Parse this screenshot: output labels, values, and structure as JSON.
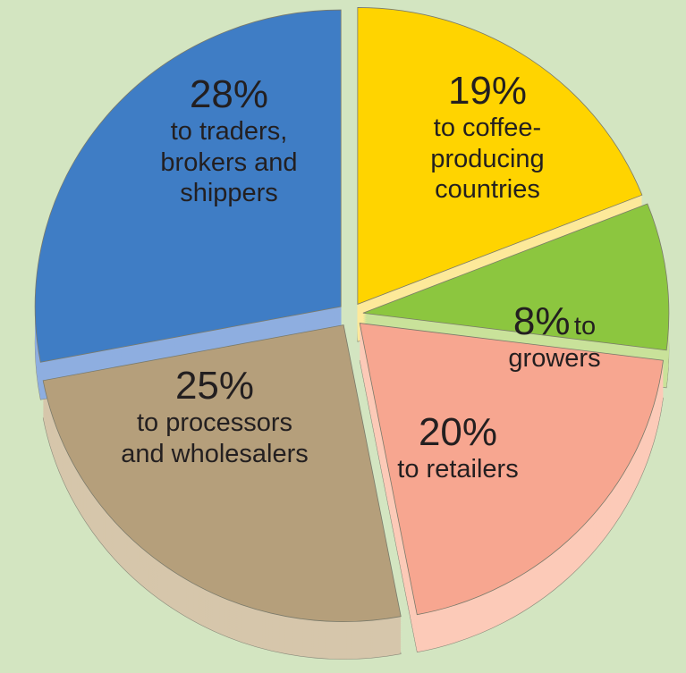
{
  "chart_data": {
    "type": "pie",
    "categories": [
      "to coffee-\nproducing\ncountries",
      "to growers",
      "to retailers",
      "to processors\nand wholesalers",
      "to traders,\nbrokers and\nshippers"
    ],
    "values": [
      19,
      8,
      20,
      25,
      28
    ],
    "value_labels": [
      "19%",
      "8%",
      "20%",
      "25%",
      "28%"
    ],
    "colors": [
      "#ffd400",
      "#8cc63f",
      "#f7a690",
      "#b59f7b",
      "#3f7dc5"
    ],
    "side_colors": [
      "#fde99a",
      "#c9e29a",
      "#fccab8",
      "#d6c6ab",
      "#8eaee0"
    ]
  }
}
